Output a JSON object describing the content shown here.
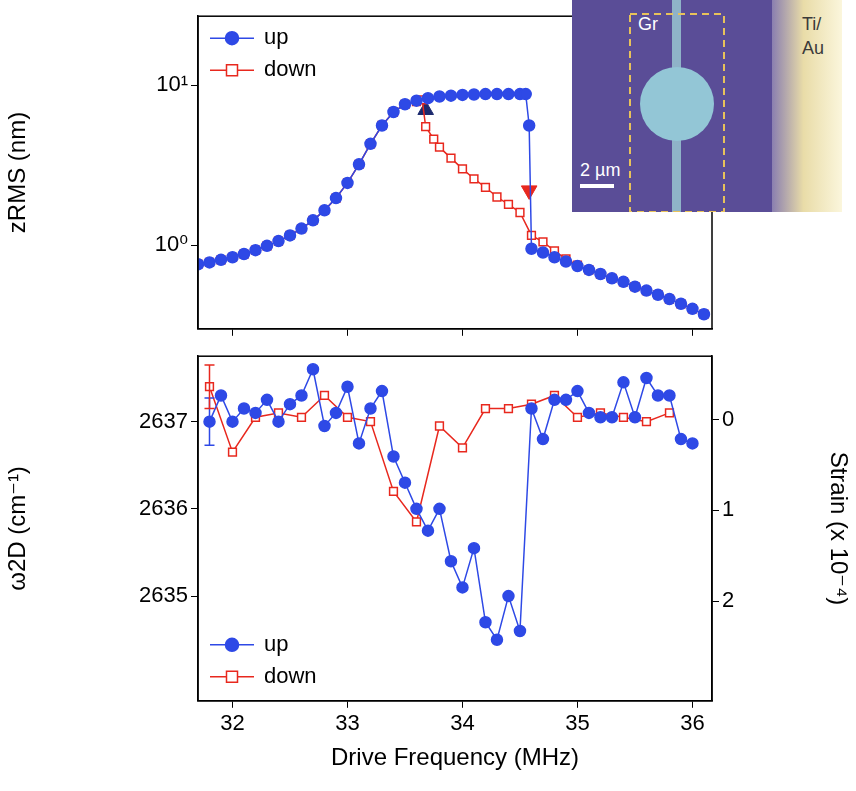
{
  "chart_data": [
    {
      "type": "line",
      "log": "y",
      "grid": false,
      "legend": "upper left",
      "tick_labels": "y",
      "y_label": "zRMS (nm)",
      "xlim": [
        31.7,
        36.17
      ],
      "xticks": [
        32,
        33,
        34,
        35,
        36
      ],
      "ylim": [
        0.33,
        27
      ],
      "yticks": [
        {
          "value": 1,
          "label": "10⁰"
        },
        {
          "value": 10,
          "label": "10¹"
        }
      ],
      "series": [
        {
          "name": "up",
          "color": "#2e49e6",
          "marker": "circle",
          "line_style": "solid",
          "x": [
            31.7,
            31.8,
            31.9,
            32.0,
            32.1,
            32.2,
            32.3,
            32.4,
            32.5,
            32.6,
            32.7,
            32.8,
            32.9,
            33.0,
            33.1,
            33.2,
            33.3,
            33.4,
            33.5,
            33.6,
            33.7,
            33.8,
            33.9,
            34.0,
            34.1,
            34.2,
            34.3,
            34.4,
            34.5,
            34.55,
            34.58,
            34.6,
            34.7,
            34.8,
            34.9,
            35.0,
            35.1,
            35.2,
            35.3,
            35.4,
            35.5,
            35.6,
            35.7,
            35.8,
            35.9,
            36.0,
            36.1
          ],
          "values": [
            0.76,
            0.78,
            0.81,
            0.84,
            0.88,
            0.93,
            0.99,
            1.06,
            1.15,
            1.27,
            1.43,
            1.65,
            1.97,
            2.45,
            3.2,
            4.3,
            5.6,
            6.8,
            7.6,
            8.0,
            8.3,
            8.5,
            8.6,
            8.7,
            8.75,
            8.8,
            8.8,
            8.8,
            8.8,
            8.8,
            5.6,
            0.95,
            0.9,
            0.84,
            0.79,
            0.74,
            0.7,
            0.66,
            0.62,
            0.59,
            0.55,
            0.52,
            0.49,
            0.46,
            0.43,
            0.4,
            0.37
          ]
        },
        {
          "name": "down",
          "color": "#e8281e",
          "marker": "square_open",
          "line_style": "solid",
          "x": [
            31.7,
            31.8,
            31.9,
            32.0,
            32.1,
            32.2,
            32.3,
            32.4,
            32.5,
            32.6,
            32.7,
            32.8,
            32.9,
            33.0,
            33.1,
            33.2,
            33.3,
            33.4,
            33.5,
            33.6,
            33.65,
            33.68,
            33.75,
            33.8,
            33.9,
            34.0,
            34.1,
            34.2,
            34.3,
            34.4,
            34.5,
            34.6,
            34.7,
            34.8,
            34.9,
            35.0,
            35.1,
            35.2,
            35.3,
            35.4,
            35.5,
            35.6,
            35.7,
            35.8,
            35.9,
            36.0,
            36.1
          ],
          "values": [
            0.76,
            0.78,
            0.81,
            0.84,
            0.88,
            0.93,
            0.99,
            1.06,
            1.15,
            1.27,
            1.43,
            1.65,
            1.97,
            2.45,
            3.2,
            4.3,
            5.6,
            6.8,
            7.6,
            7.9,
            8.1,
            5.5,
            4.6,
            4.1,
            3.5,
            3.0,
            2.6,
            2.3,
            2.0,
            1.8,
            1.6,
            1.15,
            1.05,
            0.92,
            0.82,
            0.75,
            0.7,
            0.66,
            0.62,
            0.59,
            0.55,
            0.52,
            0.49,
            0.46,
            0.43,
            0.4,
            0.37
          ]
        }
      ],
      "markers": [
        {
          "x": 33.68,
          "y": 7.0,
          "color": "#1c2a6e",
          "marker": "triangle"
        },
        {
          "x": 34.58,
          "y": 2.2,
          "color": "#e8281e",
          "marker": "triangle_down"
        }
      ],
      "inset": {
        "membrane_label": "Gr",
        "electrode_label": [
          "Ti/",
          "Au"
        ],
        "scale_bar": "2 µm"
      }
    },
    {
      "type": "line",
      "grid": false,
      "legend": "lower left",
      "x_label": "Drive Frequency (MHz)",
      "y_label": "ω2D (cm⁻¹)",
      "y2_label": "Strain (x 10⁻⁴)",
      "xlim": [
        31.7,
        36.17
      ],
      "xticks": [
        32,
        33,
        34,
        35,
        36
      ],
      "ylim": [
        2633.8,
        2637.75
      ],
      "yticks": [
        2635,
        2636,
        2637
      ],
      "y2lim": [
        3.1,
        -0.7
      ],
      "y2ticks": [
        0,
        1,
        2
      ],
      "series": [
        {
          "name": "up",
          "color": "#2e49e6",
          "marker": "circle",
          "line_style": "solid",
          "x": [
            31.8,
            31.9,
            32.0,
            32.1,
            32.2,
            32.3,
            32.4,
            32.5,
            32.6,
            32.7,
            32.8,
            32.9,
            33.0,
            33.1,
            33.2,
            33.3,
            33.4,
            33.5,
            33.6,
            33.7,
            33.8,
            33.9,
            34.0,
            34.1,
            34.2,
            34.3,
            34.4,
            34.5,
            34.6,
            34.7,
            34.8,
            34.9,
            35.0,
            35.1,
            35.2,
            35.3,
            35.4,
            35.5,
            35.6,
            35.7,
            35.8,
            35.9,
            36.0
          ],
          "values": [
            2637.0,
            2637.3,
            2637.0,
            2637.15,
            2637.1,
            2637.25,
            2637.0,
            2637.2,
            2637.3,
            2637.6,
            2636.95,
            2637.1,
            2637.4,
            2636.75,
            2637.15,
            2637.35,
            2636.6,
            2636.3,
            2636.0,
            2635.75,
            2636.0,
            2635.4,
            2635.1,
            2635.55,
            2634.7,
            2634.5,
            2635.0,
            2634.6,
            2637.15,
            2636.8,
            2637.25,
            2637.25,
            2637.35,
            2637.1,
            2637.05,
            2637.05,
            2637.45,
            2637.05,
            2637.5,
            2637.3,
            2637.3,
            2636.8,
            2636.75
          ],
          "errors": [
            0.27,
            null,
            null,
            null,
            null,
            null,
            null,
            null,
            null,
            null,
            null,
            null,
            null,
            null,
            null,
            null,
            null,
            null,
            null,
            null,
            null,
            null,
            null,
            null,
            null,
            null,
            null,
            null,
            null,
            null,
            null,
            null,
            null,
            null,
            null,
            null,
            null,
            null,
            null,
            null,
            null,
            null,
            null
          ]
        },
        {
          "name": "down",
          "color": "#e8281e",
          "marker": "square_open",
          "line_style": "solid",
          "x": [
            31.8,
            32.0,
            32.2,
            32.4,
            32.6,
            32.8,
            33.0,
            33.2,
            33.4,
            33.6,
            33.8,
            34.0,
            34.2,
            34.4,
            34.6,
            34.8,
            35.0,
            35.2,
            35.4,
            35.6,
            35.8
          ],
          "values": [
            2637.4,
            2636.65,
            2637.05,
            2637.1,
            2637.05,
            2637.3,
            2637.05,
            2637.0,
            2636.2,
            2635.85,
            2636.95,
            2636.7,
            2637.15,
            2637.15,
            2637.2,
            2637.3,
            2637.05,
            2637.1,
            2637.05,
            2637.0,
            2637.1
          ],
          "errors": [
            0.25,
            null,
            null,
            null,
            null,
            null,
            null,
            null,
            null,
            null,
            null,
            null,
            null,
            null,
            null,
            null,
            null,
            null,
            null,
            null,
            null
          ]
        }
      ]
    }
  ]
}
